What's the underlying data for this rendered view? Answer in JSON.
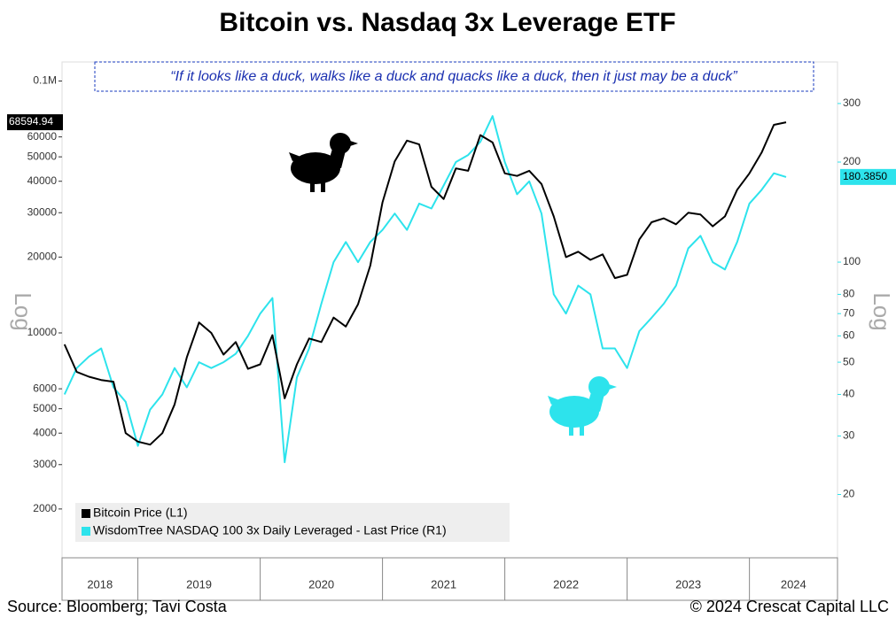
{
  "chart_data": {
    "type": "line",
    "title": "Bitcoin vs. Nasdaq 3x Leverage ETF",
    "annotation": "“If it looks like a duck, walks like a duck and quacks like a duck, then it just may be a duck”",
    "ylabel": "Log",
    "y2label": "Log",
    "source": "Source: Bloomberg; Tavi Costa",
    "copyright": "© 2024 Crescat Capital LLC",
    "log_scale": true,
    "legend": "bottom-left",
    "xlim": [
      2018.38,
      2024.72
    ],
    "xticks": [
      2018,
      2019,
      2020,
      2021,
      2022,
      2023,
      2024
    ],
    "ylim": [
      1280,
      119000
    ],
    "yticks": [
      {
        "value": 100000,
        "label": "0.1M"
      },
      60000,
      50000,
      40000,
      30000,
      20000,
      10000,
      6000,
      5000,
      4000,
      3000,
      2000
    ],
    "y2lim": [
      12.9,
      400
    ],
    "y2ticks": [
      300,
      200,
      100,
      80,
      70,
      60,
      50,
      40,
      30,
      20
    ],
    "x": [
      2018.4,
      2018.5,
      2018.6,
      2018.7,
      2018.8,
      2018.9,
      2019.0,
      2019.1,
      2019.2,
      2019.3,
      2019.4,
      2019.5,
      2019.6,
      2019.7,
      2019.8,
      2019.9,
      2020.0,
      2020.1,
      2020.2,
      2020.3,
      2020.4,
      2020.5,
      2020.6,
      2020.7,
      2020.8,
      2020.9,
      2021.0,
      2021.1,
      2021.2,
      2021.3,
      2021.4,
      2021.5,
      2021.6,
      2021.7,
      2021.8,
      2021.9,
      2022.0,
      2022.1,
      2022.2,
      2022.3,
      2022.4,
      2022.5,
      2022.6,
      2022.7,
      2022.8,
      2022.9,
      2023.0,
      2023.1,
      2023.2,
      2023.3,
      2023.4,
      2023.5,
      2023.6,
      2023.7,
      2023.8,
      2023.9,
      2024.0,
      2024.1,
      2024.2,
      2024.3
    ],
    "series": [
      {
        "name": "Bitcoin Price (L1)",
        "color": "#000000",
        "values": [
          9000,
          7000,
          6700,
          6500,
          6400,
          4000,
          3700,
          3600,
          4000,
          5200,
          8000,
          11000,
          10000,
          8200,
          9200,
          7200,
          7500,
          9800,
          5500,
          7500,
          9500,
          9200,
          11500,
          10600,
          13000,
          18500,
          33000,
          48000,
          58000,
          56000,
          38000,
          34000,
          45000,
          44000,
          61000,
          57000,
          43000,
          42000,
          44000,
          39000,
          29000,
          20000,
          21000,
          19500,
          20500,
          16500,
          17000,
          23500,
          27500,
          28500,
          27000,
          30000,
          29500,
          26500,
          29000,
          37000,
          43000,
          52000,
          67000,
          68594.94
        ],
        "last_price": {
          "value": 68594.94,
          "label": "68594.94"
        }
      },
      {
        "name": "WisdomTree NASDAQ 100 3x Daily Leveraged - Last Price (R1)",
        "color": "#2de3ec",
        "axis": "y2",
        "values": [
          40,
          48,
          52,
          55,
          42,
          38,
          28,
          36,
          40,
          48,
          42,
          50,
          48,
          50,
          53,
          60,
          70,
          78,
          25,
          45,
          55,
          75,
          100,
          115,
          100,
          115,
          125,
          140,
          125,
          150,
          145,
          170,
          200,
          210,
          230,
          275,
          200,
          160,
          175,
          140,
          80,
          70,
          85,
          80,
          55,
          55,
          48,
          62,
          68,
          75,
          85,
          110,
          120,
          100,
          95,
          115,
          150,
          165,
          185,
          180.385
        ],
        "last_price": {
          "value": 180.385,
          "label": "180.3850"
        }
      }
    ]
  }
}
